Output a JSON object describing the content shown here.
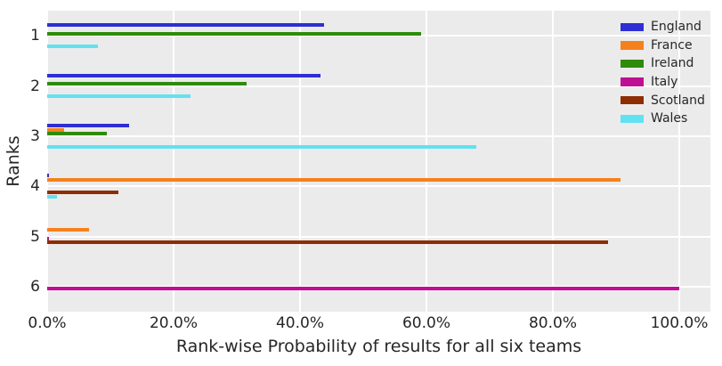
{
  "chart_data": {
    "type": "bar",
    "orientation": "horizontal",
    "title": "",
    "xlabel": "Rank-wise Probability of results for all six teams",
    "ylabel": "Ranks",
    "categories": [
      "1",
      "2",
      "3",
      "4",
      "5",
      "6"
    ],
    "x_ticks": [
      {
        "value": 0,
        "label": "0.0%"
      },
      {
        "value": 20,
        "label": "20.0%"
      },
      {
        "value": 40,
        "label": "40.0%"
      },
      {
        "value": 60,
        "label": "60.0%"
      },
      {
        "value": 80,
        "label": "80.0%"
      },
      {
        "value": 100,
        "label": "100.0%"
      }
    ],
    "xlim": [
      0,
      104.9
    ],
    "grid": true,
    "plot_background": "#ebebeb",
    "gridline_color": "#ffffff",
    "legend_position": "upper right",
    "series": [
      {
        "name": "England",
        "color": "#2e2ed4",
        "values": [
          43.8,
          43.2,
          13.0,
          0.3,
          0,
          0
        ]
      },
      {
        "name": "France",
        "color": "#f5811d",
        "values": [
          0,
          0,
          2.7,
          90.7,
          6.6,
          0
        ]
      },
      {
        "name": "Ireland",
        "color": "#2f8b0b",
        "values": [
          59.2,
          31.5,
          9.4,
          0,
          0,
          0
        ]
      },
      {
        "name": "Italy",
        "color": "#c00d94",
        "values": [
          0,
          0,
          0,
          0,
          0.3,
          100.0
        ]
      },
      {
        "name": "Scotland",
        "color": "#8e2c04",
        "values": [
          0,
          0,
          0,
          11.3,
          88.7,
          0
        ]
      },
      {
        "name": "Wales",
        "color": "#62e1f2",
        "values": [
          8.0,
          22.7,
          67.9,
          1.5,
          0,
          0
        ]
      }
    ]
  }
}
